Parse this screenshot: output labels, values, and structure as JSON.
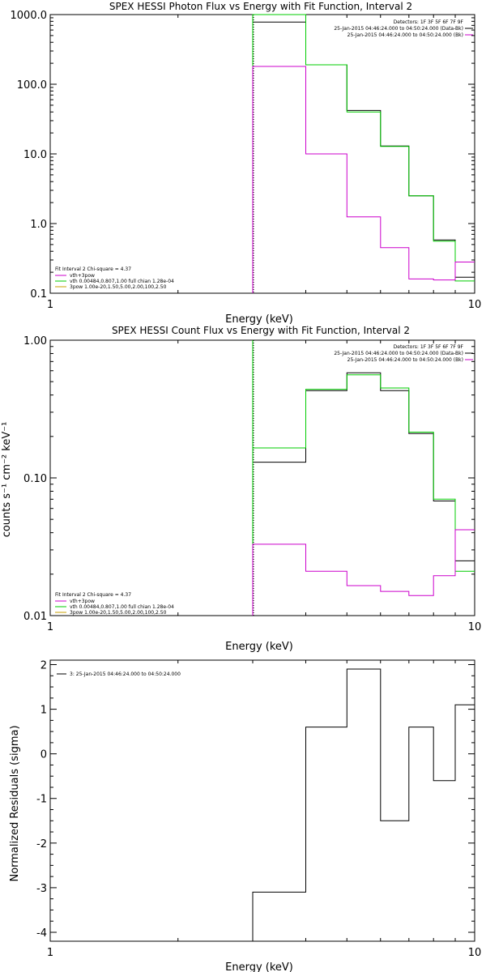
{
  "colors": {
    "data": "#000000",
    "model": "#00cc00",
    "background": "#cc00cc",
    "ref_line_green": "#00cc00",
    "ref_line_dotted": "#000000"
  },
  "panels": {
    "photon": {
      "title": "SPEX HESSI Photon Flux vs Energy with Fit Function, Interval 2",
      "xlabel": "Energy (keV)",
      "ylabel": "",
      "fit_text": "Fit Interval 2   Chi-square = 4.37",
      "info_lines": [
        "Detectors: 1F 3F 5F 6F 7F 9F",
        "25-Jan-2015 04:46:24.000 to 04:50:24.000 (Data-Bk)",
        "25-Jan-2015 04:46:24.000 to 04:50:24.000 (Bk)"
      ],
      "legend": [
        {
          "label": "vth+3pow",
          "color": "#cc00cc"
        },
        {
          "label": "vth 0.00484,0.807,1.00   full chian 1.28e-04",
          "color": "#00cc00"
        },
        {
          "label": "3pow 1.00e-20,1.50,5.00,2.00,100,2.50",
          "color": "#c8a000"
        }
      ]
    },
    "count": {
      "title": "SPEX HESSI Count Flux vs Energy with Fit Function, Interval 2",
      "xlabel": "Energy (keV)",
      "ylabel": "counts s⁻¹ cm⁻² keV⁻¹",
      "fit_text": "Fit Interval 2   Chi-square = 4.37",
      "info_lines": [
        "Detectors: 1F 3F 5F 6F 7F 9F",
        "25-Jan-2015 04:46:24.000 to 04:50:24.000 (Data-Bk)",
        "25-Jan-2015 04:46:24.000 to 04:50:24.000 (Bk)"
      ],
      "legend": [
        {
          "label": "vth+3pow",
          "color": "#cc00cc"
        },
        {
          "label": "vth 0.00484,0.807,1.00   full chian 1.28e-04",
          "color": "#00cc00"
        },
        {
          "label": "3pow 1.00e-20,1.50,5.00,2.00,100,2.50",
          "color": "#c8a000"
        }
      ]
    },
    "resid": {
      "title": "",
      "xlabel": "Energy (keV)",
      "ylabel": "Normalized Residuals (sigma)",
      "legend_text": "3: 25-Jan-2015 04:46:24.000 to 04:50:24.000"
    }
  },
  "chart_data": [
    {
      "type": "line",
      "subtype": "step-histogram",
      "title": "SPEX HESSI Photon Flux vs Energy with Fit Function, Interval 2",
      "xlabel": "Energy (keV)",
      "ylabel": "",
      "xscale": "log",
      "yscale": "log",
      "xlim": [
        1,
        10
      ],
      "ylim": [
        0.1,
        1000
      ],
      "xticks": [
        {
          "v": 1,
          "label": "1"
        },
        {
          "v": 10,
          "label": "10"
        }
      ],
      "yticks": [
        {
          "v": 0.1,
          "label": "0.1"
        },
        {
          "v": 1,
          "label": "1.0"
        },
        {
          "v": 10,
          "label": "10.0"
        },
        {
          "v": 100,
          "label": "100.0"
        },
        {
          "v": 1000,
          "label": "1000.0"
        }
      ],
      "reference_x": 3,
      "bin_edges": [
        3,
        4,
        5,
        6,
        7,
        8,
        9,
        10
      ],
      "series": [
        {
          "name": "",
          "color": "#000000",
          "values": [
            780,
            190,
            42,
            13,
            2.5,
            0.58,
            0.17
          ]
        },
        {
          "name": "vth",
          "color": "#00cc00",
          "values": [
            1000,
            190,
            40,
            12.8,
            2.5,
            0.56,
            0.15
          ]
        },
        {
          "name": "vth+3pow",
          "color": "#cc00cc",
          "values": [
            180,
            10,
            1.25,
            0.45,
            0.16,
            0.155,
            0.28
          ]
        }
      ],
      "grid": false,
      "legend_position": "bottom-left"
    },
    {
      "type": "line",
      "subtype": "step-histogram",
      "title": "SPEX HESSI Count Flux vs Energy with Fit Function, Interval 2",
      "xlabel": "Energy (keV)",
      "ylabel": "counts s⁻¹ cm⁻² keV⁻¹",
      "xscale": "log",
      "yscale": "log",
      "xlim": [
        1,
        10
      ],
      "ylim": [
        0.01,
        1
      ],
      "xticks": [
        {
          "v": 1,
          "label": "1"
        },
        {
          "v": 10,
          "label": "10"
        }
      ],
      "yticks": [
        {
          "v": 0.01,
          "label": "0.01"
        },
        {
          "v": 0.1,
          "label": "0.10"
        },
        {
          "v": 1,
          "label": "1.00"
        }
      ],
      "reference_x": 3,
      "bin_edges": [
        3,
        4,
        5,
        6,
        7,
        8,
        9,
        10
      ],
      "series": [
        {
          "name": "",
          "color": "#000000",
          "values": [
            0.13,
            0.43,
            0.58,
            0.43,
            0.21,
            0.068,
            0.025
          ]
        },
        {
          "name": "vth",
          "color": "#00cc00",
          "values": [
            0.165,
            0.44,
            0.56,
            0.45,
            0.215,
            0.07,
            0.021
          ]
        },
        {
          "name": "vth+3pow",
          "color": "#cc00cc",
          "values": [
            0.033,
            0.021,
            0.0165,
            0.015,
            0.014,
            0.0195,
            0.042
          ]
        }
      ],
      "grid": false,
      "legend_position": "bottom-left"
    },
    {
      "type": "line",
      "subtype": "step-histogram",
      "title": "",
      "xlabel": "Energy (keV)",
      "ylabel": "Normalized Residuals (sigma)",
      "xscale": "log",
      "yscale": "linear",
      "xlim": [
        1,
        10
      ],
      "ylim": [
        -4.2,
        2.1
      ],
      "xticks": [
        {
          "v": 1,
          "label": "1"
        },
        {
          "v": 10,
          "label": "10"
        }
      ],
      "yticks": [
        {
          "v": -4,
          "label": "-4"
        },
        {
          "v": -3,
          "label": "-3"
        },
        {
          "v": -2,
          "label": "-2"
        },
        {
          "v": -1,
          "label": "-1"
        },
        {
          "v": 0,
          "label": "0"
        },
        {
          "v": 1,
          "label": "1"
        },
        {
          "v": 2,
          "label": "2"
        }
      ],
      "bin_edges": [
        3,
        4,
        5,
        6,
        7,
        8,
        9,
        10
      ],
      "series": [
        {
          "name": "3: 25-Jan-2015 04:46:24.000 to 04:50:24.000",
          "color": "#000000",
          "values": [
            -3.1,
            0.6,
            1.9,
            -1.5,
            0.6,
            -0.6,
            1.1
          ]
        }
      ],
      "grid": false,
      "legend_position": "top-left"
    }
  ]
}
